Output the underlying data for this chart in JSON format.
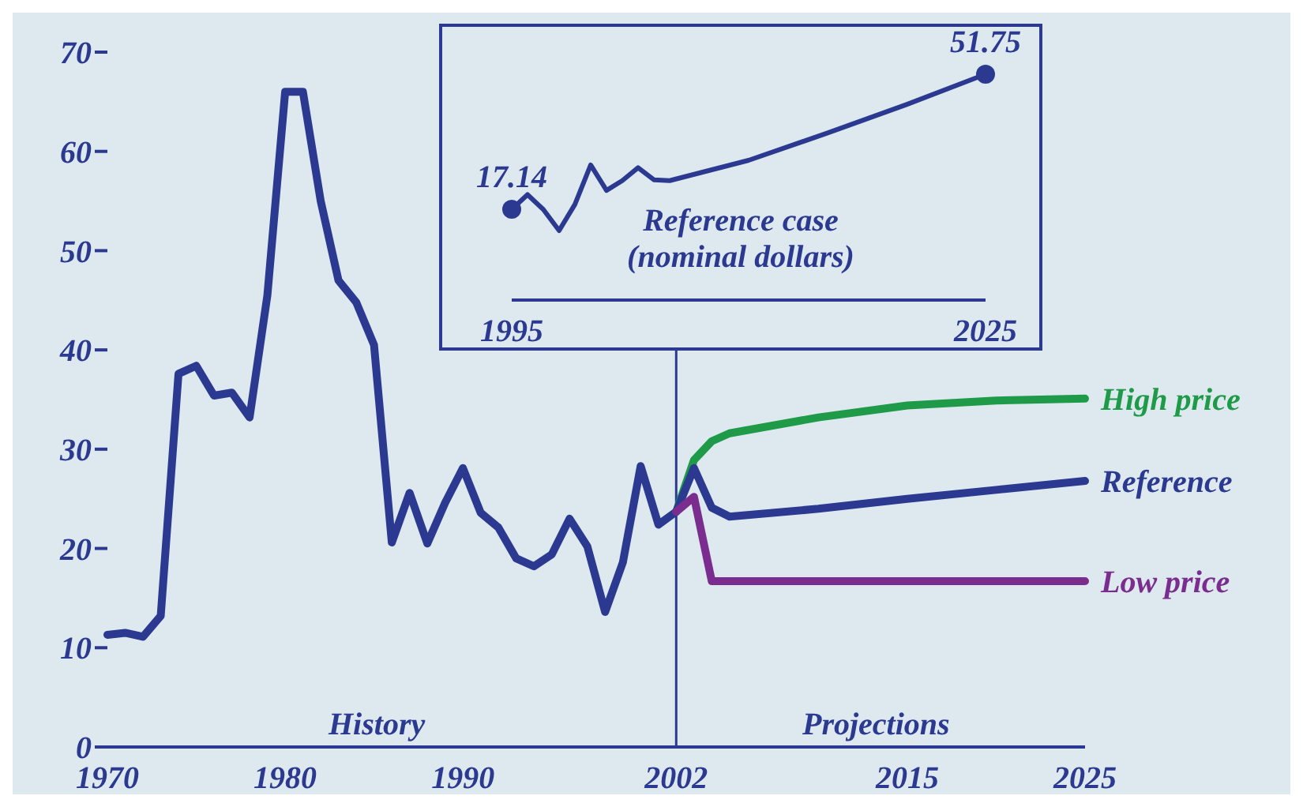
{
  "chart_data": [
    {
      "type": "line",
      "xlim": [
        1970,
        2025
      ],
      "xticks": [
        1970,
        1980,
        1990,
        2002,
        2015,
        2025
      ],
      "ylim": [
        0,
        70
      ],
      "yticks": [
        0,
        10,
        20,
        30,
        40,
        50,
        60,
        70
      ],
      "ref_lines": [
        {
          "axis": "x",
          "value": 2002,
          "label": null,
          "color": "#2b3990"
        }
      ],
      "annotations": [
        "History",
        "Projections"
      ],
      "series": [
        {
          "color": "#2b3990",
          "x": [
            1970,
            1971,
            1972,
            1973,
            1974,
            1975,
            1976,
            1977,
            1978,
            1979,
            1980,
            1981,
            1982,
            1983,
            1984,
            1985,
            1986,
            1987,
            1988,
            1989,
            1990,
            1991,
            1992,
            1993,
            1994,
            1995,
            1996,
            1997,
            1998,
            1999,
            2000,
            2001,
            2002
          ],
          "values": [
            11.3,
            11.5,
            11.1,
            13.2,
            37.6,
            38.4,
            35.4,
            35.7,
            33.2,
            45.5,
            66,
            66,
            55,
            47,
            44.8,
            40.5,
            20.6,
            25.6,
            20.5,
            24.6,
            28.1,
            23.6,
            22.1,
            19,
            18.2,
            19.4,
            23,
            20.2,
            13.6,
            18.6,
            28.3,
            22.4,
            23.7
          ]
        },
        {
          "name": "High price",
          "color": "#1e9a48",
          "x": [
            2002,
            2003,
            2004,
            2005,
            2010,
            2015,
            2020,
            2025
          ],
          "values": [
            23.7,
            28.9,
            30.8,
            31.6,
            33.2,
            34.4,
            34.9,
            35.1
          ]
        },
        {
          "name": "Reference",
          "color": "#2b3990",
          "x": [
            2002,
            2003,
            2004,
            2005,
            2010,
            2015,
            2020,
            2025
          ],
          "values": [
            23.7,
            28.1,
            24.1,
            23.2,
            24,
            25,
            25.9,
            26.8
          ]
        },
        {
          "name": "Low price",
          "color": "#7a2d8f",
          "x": [
            2002,
            2003,
            2004,
            2025
          ],
          "values": [
            23.7,
            25.2,
            16.7,
            16.7
          ]
        }
      ]
    },
    {
      "type": "line",
      "title": "Reference case",
      "subtitle": "(nominal dollars)",
      "xlim": [
        1995,
        2025
      ],
      "xticks": [
        1995,
        2025
      ],
      "tick_labels": "x",
      "series": [
        {
          "color": "#2b3990",
          "x": [
            1995,
            1996,
            1997,
            1998,
            1999,
            2000,
            2001,
            2002,
            2003,
            2004,
            2005,
            2010,
            2015,
            2020,
            2025
          ],
          "values": [
            17.14,
            20.9,
            17.1,
            11.7,
            18.4,
            28.5,
            22,
            24.5,
            27.8,
            24.7,
            24.5,
            29.7,
            36.7,
            44,
            51.75
          ],
          "value_labels": [
            "17.14",
            null,
            null,
            null,
            null,
            null,
            null,
            null,
            null,
            null,
            null,
            null,
            null,
            null,
            "51.75"
          ]
        }
      ]
    }
  ]
}
